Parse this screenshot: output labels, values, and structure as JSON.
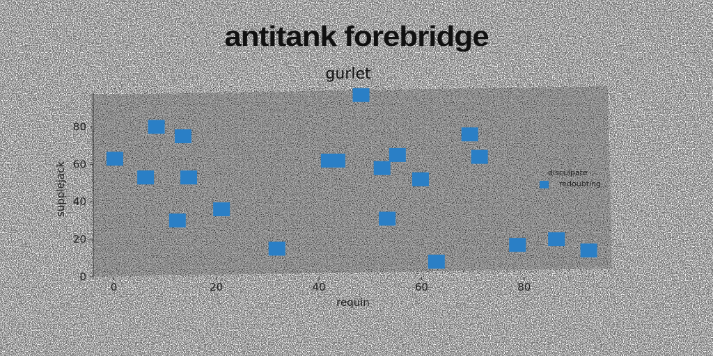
{
  "suptitle": "antitank forebridge",
  "chart_data": {
    "type": "scatter",
    "title": "gurlet",
    "xlabel": "requin",
    "ylabel": "supplejack",
    "xlim": [
      -4,
      97
    ],
    "ylim": [
      0,
      98
    ],
    "xticks": [
      0,
      20,
      40,
      60,
      80
    ],
    "yticks": [
      0,
      20,
      40,
      60,
      80
    ],
    "grid": false,
    "legend": {
      "title": "disculpate",
      "placement": "center-right"
    },
    "series": [
      {
        "name": "redoubting",
        "color": "#2a7fc6",
        "marker": "square",
        "points": [
          {
            "x": 0.2,
            "y": 63
          },
          {
            "x": 6.2,
            "y": 53
          },
          {
            "x": 8.3,
            "y": 80
          },
          {
            "x": 12.4,
            "y": 30
          },
          {
            "x": 13.5,
            "y": 75
          },
          {
            "x": 14.6,
            "y": 53
          },
          {
            "x": 21.0,
            "y": 36
          },
          {
            "x": 31.8,
            "y": 15
          },
          {
            "x": 42.0,
            "y": 62
          },
          {
            "x": 43.5,
            "y": 62
          },
          {
            "x": 48.2,
            "y": 97
          },
          {
            "x": 52.3,
            "y": 58
          },
          {
            "x": 53.3,
            "y": 31
          },
          {
            "x": 55.3,
            "y": 65
          },
          {
            "x": 59.8,
            "y": 52
          },
          {
            "x": 62.9,
            "y": 8
          },
          {
            "x": 69.4,
            "y": 76
          },
          {
            "x": 71.3,
            "y": 64
          },
          {
            "x": 78.7,
            "y": 17
          },
          {
            "x": 86.3,
            "y": 20
          },
          {
            "x": 92.6,
            "y": 14
          }
        ]
      }
    ]
  }
}
